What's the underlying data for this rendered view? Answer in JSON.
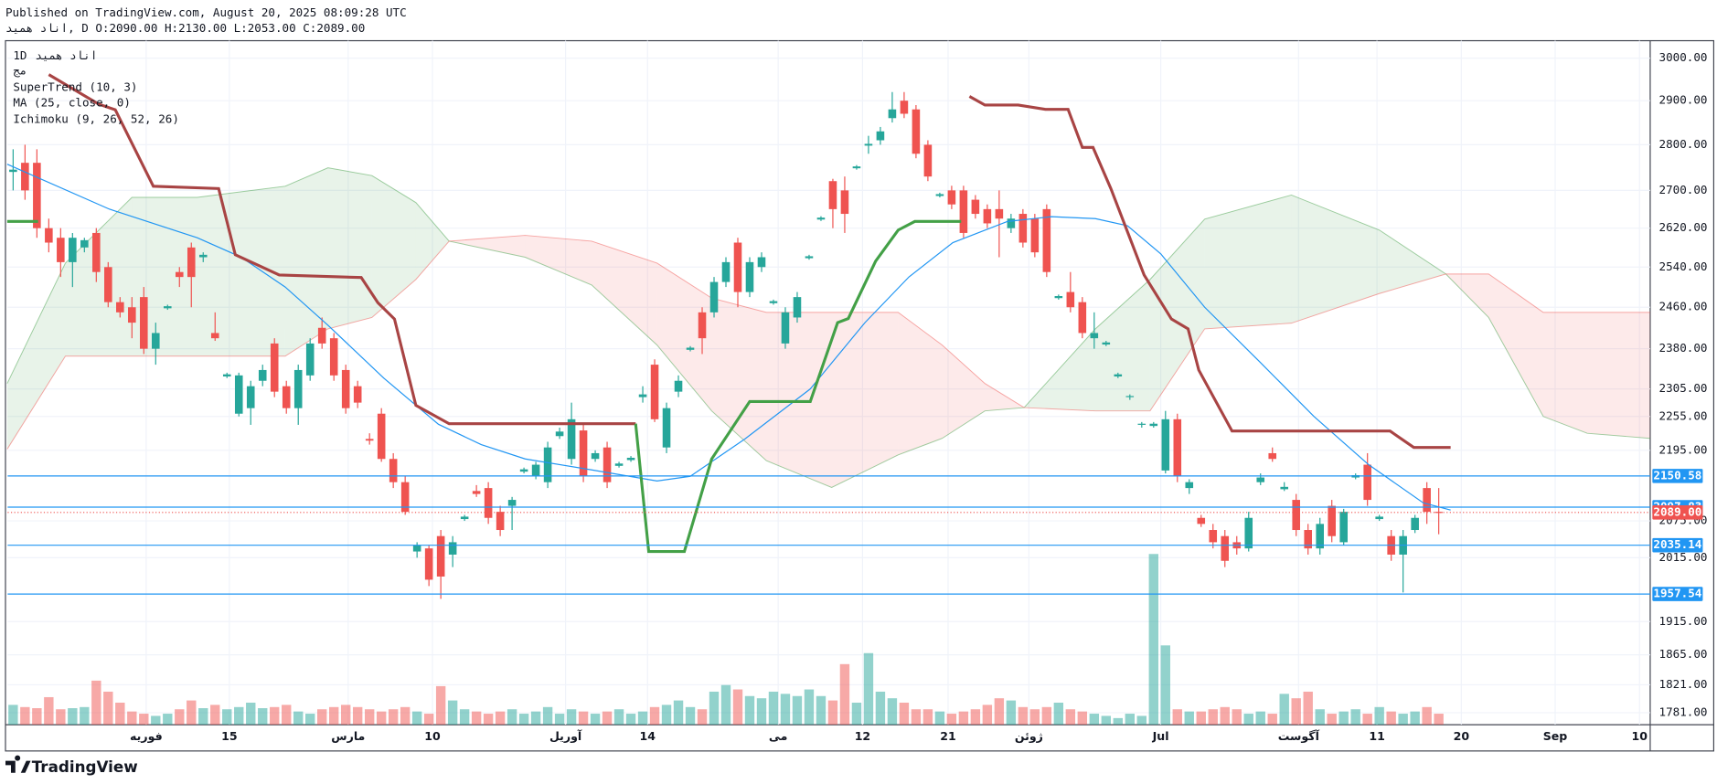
{
  "header": {
    "published": "Published on TradingView.com, August 20, 2025 08:09:28 UTC",
    "ohlc_line": "اناد همید, D O:2090.00 H:2130.00 L:2053.00 C:2089.00"
  },
  "legend": {
    "interval": "1D",
    "symbol": "اناد همید",
    "sub": "مج",
    "indicators": [
      "SuperTrend (10, 3)",
      "MA (25, close, 0)",
      "Ichimoku (9, 26, 52, 26)"
    ]
  },
  "footer": {
    "brand": "TradingView"
  },
  "chart_data": {
    "type": "candlestick",
    "log_scale": true,
    "grid": true,
    "up_color": "#26a69a",
    "down_color": "#ef5350",
    "xlim": [
      -0.46,
      137.8
    ],
    "ylim": [
      1764,
      3042
    ],
    "yticks": [
      {
        "value": 3000,
        "label": "3000.00"
      },
      {
        "value": 2900,
        "label": "2900.00"
      },
      {
        "value": 2800,
        "label": "2800.00"
      },
      {
        "value": 2700,
        "label": "2700.00"
      },
      {
        "value": 2620,
        "label": "2620.00"
      },
      {
        "value": 2540,
        "label": "2540.00"
      },
      {
        "value": 2460,
        "label": "2460.00"
      },
      {
        "value": 2380,
        "label": "2380.00"
      },
      {
        "value": 2305,
        "label": "2305.00"
      },
      {
        "value": 2255,
        "label": "2255.00"
      },
      {
        "value": 2195,
        "label": "2195.00"
      },
      {
        "value": 2075,
        "label": "2075.00"
      },
      {
        "value": 2015,
        "label": "2015.00"
      },
      {
        "value": 1915,
        "label": "1915.00"
      },
      {
        "value": 1865,
        "label": "1865.00"
      },
      {
        "value": 1821,
        "label": "1821.00"
      },
      {
        "value": 1781,
        "label": "1781.00"
      }
    ],
    "xticks": [
      {
        "value": 11.2,
        "label": "فوریه"
      },
      {
        "value": 18.2,
        "label": "15"
      },
      {
        "value": 28.2,
        "label": "مارس"
      },
      {
        "value": 35.3,
        "label": "10"
      },
      {
        "value": 46.5,
        "label": "آوریل"
      },
      {
        "value": 53.4,
        "label": "14"
      },
      {
        "value": 64.4,
        "label": "می"
      },
      {
        "value": 71.5,
        "label": "12"
      },
      {
        "value": 78.7,
        "label": "21"
      },
      {
        "value": 85.5,
        "label": "ژوئن"
      },
      {
        "value": 96.6,
        "label": "Jul"
      },
      {
        "value": 108.2,
        "label": "آگوست"
      },
      {
        "value": 114.8,
        "label": "11"
      },
      {
        "value": 121.9,
        "label": "20"
      },
      {
        "value": 129.8,
        "label": "Sep"
      },
      {
        "value": 136.9,
        "label": "10"
      }
    ],
    "ohlc": [
      [
        2740,
        2790,
        2700,
        2745
      ],
      [
        2760,
        2800,
        2680,
        2700
      ],
      [
        2760,
        2790,
        2600,
        2620
      ],
      [
        2620,
        2640,
        2570,
        2590
      ],
      [
        2600,
        2620,
        2520,
        2550
      ],
      [
        2550,
        2610,
        2500,
        2600
      ],
      [
        2580,
        2600,
        2570,
        2595
      ],
      [
        2610,
        2620,
        2510,
        2530
      ],
      [
        2540,
        2550,
        2460,
        2470
      ],
      [
        2470,
        2480,
        2440,
        2450
      ],
      [
        2460,
        2480,
        2400,
        2430
      ],
      [
        2480,
        2500,
        2370,
        2380
      ],
      [
        2380,
        2430,
        2350,
        2410
      ],
      [
        2458,
        2465,
        2455,
        2462
      ],
      [
        2530,
        2540,
        2500,
        2520
      ],
      [
        2580,
        2590,
        2460,
        2520
      ],
      [
        2560,
        2570,
        2550,
        2565
      ],
      [
        2410,
        2450,
        2395,
        2400
      ],
      [
        2328,
        2335,
        2325,
        2332
      ],
      [
        2260,
        2335,
        2255,
        2330
      ],
      [
        2270,
        2320,
        2240,
        2310
      ],
      [
        2320,
        2350,
        2310,
        2340
      ],
      [
        2390,
        2400,
        2290,
        2300
      ],
      [
        2310,
        2320,
        2260,
        2270
      ],
      [
        2270,
        2350,
        2240,
        2340
      ],
      [
        2330,
        2400,
        2320,
        2390
      ],
      [
        2420,
        2440,
        2380,
        2390
      ],
      [
        2400,
        2410,
        2320,
        2330
      ],
      [
        2340,
        2350,
        2260,
        2270
      ],
      [
        2310,
        2320,
        2270,
        2280
      ],
      [
        2215,
        2225,
        2205,
        2212
      ],
      [
        2260,
        2270,
        2175,
        2180
      ],
      [
        2180,
        2190,
        2130,
        2140
      ],
      [
        2140,
        2150,
        2085,
        2090
      ],
      [
        2025,
        2040,
        2015,
        2035
      ],
      [
        2030,
        2035,
        1970,
        1980
      ],
      [
        2050,
        2060,
        1950,
        1985
      ],
      [
        2020,
        2050,
        2000,
        2040
      ],
      [
        2078,
        2085,
        2075,
        2082
      ],
      [
        2125,
        2135,
        2115,
        2120
      ],
      [
        2130,
        2140,
        2070,
        2080
      ],
      [
        2090,
        2100,
        2050,
        2060
      ],
      [
        2100,
        2115,
        2060,
        2110
      ],
      [
        2158,
        2165,
        2155,
        2162
      ],
      [
        2150,
        2175,
        2145,
        2170
      ],
      [
        2140,
        2210,
        2130,
        2200
      ],
      [
        2220,
        2235,
        2215,
        2228
      ],
      [
        2180,
        2280,
        2170,
        2250
      ],
      [
        2230,
        2240,
        2140,
        2150
      ],
      [
        2180,
        2195,
        2175,
        2190
      ],
      [
        2200,
        2210,
        2130,
        2140
      ],
      [
        2168,
        2175,
        2165,
        2172
      ],
      [
        2178,
        2185,
        2175,
        2182
      ],
      [
        2290,
        2310,
        2280,
        2295
      ],
      [
        2350,
        2360,
        2245,
        2250
      ],
      [
        2200,
        2280,
        2190,
        2270
      ],
      [
        2300,
        2330,
        2290,
        2320
      ],
      [
        2378,
        2385,
        2375,
        2382
      ],
      [
        2450,
        2460,
        2370,
        2400
      ],
      [
        2450,
        2520,
        2440,
        2510
      ],
      [
        2510,
        2560,
        2500,
        2550
      ],
      [
        2590,
        2600,
        2460,
        2490
      ],
      [
        2490,
        2560,
        2480,
        2550
      ],
      [
        2540,
        2570,
        2530,
        2560
      ],
      [
        2468,
        2475,
        2465,
        2472
      ],
      [
        2390,
        2460,
        2380,
        2450
      ],
      [
        2440,
        2490,
        2430,
        2480
      ],
      [
        2558,
        2565,
        2555,
        2562
      ],
      [
        2638,
        2645,
        2635,
        2642
      ],
      [
        2720,
        2725,
        2620,
        2660
      ],
      [
        2700,
        2730,
        2610,
        2650
      ],
      [
        2748,
        2755,
        2745,
        2752
      ],
      [
        2798,
        2820,
        2780,
        2802
      ],
      [
        2810,
        2840,
        2800,
        2830
      ],
      [
        2860,
        2920,
        2850,
        2880
      ],
      [
        2900,
        2920,
        2860,
        2870
      ],
      [
        2880,
        2890,
        2770,
        2780
      ],
      [
        2800,
        2810,
        2720,
        2730
      ],
      [
        2688,
        2695,
        2685,
        2692
      ],
      [
        2700,
        2710,
        2660,
        2670
      ],
      [
        2700,
        2710,
        2600,
        2610
      ],
      [
        2680,
        2690,
        2640,
        2650
      ],
      [
        2660,
        2670,
        2620,
        2630
      ],
      [
        2660,
        2700,
        2560,
        2640
      ],
      [
        2620,
        2650,
        2610,
        2640
      ],
      [
        2650,
        2660,
        2580,
        2590
      ],
      [
        2640,
        2650,
        2560,
        2570
      ],
      [
        2660,
        2670,
        2520,
        2530
      ],
      [
        2478,
        2485,
        2475,
        2482
      ],
      [
        2490,
        2530,
        2450,
        2460
      ],
      [
        2470,
        2480,
        2400,
        2410
      ],
      [
        2400,
        2450,
        2380,
        2410
      ],
      [
        2388,
        2395,
        2385,
        2392
      ],
      [
        2328,
        2335,
        2325,
        2332
      ],
      [
        2290,
        2295,
        2285,
        2292
      ],
      [
        2240,
        2245,
        2235,
        2242
      ],
      [
        2238,
        2245,
        2235,
        2242
      ],
      [
        2160,
        2265,
        2155,
        2250
      ],
      [
        2250,
        2260,
        2140,
        2150
      ],
      [
        2130,
        2145,
        2120,
        2140
      ],
      [
        2080,
        2085,
        2065,
        2070
      ],
      [
        2060,
        2070,
        2030,
        2040
      ],
      [
        2050,
        2060,
        2000,
        2010
      ],
      [
        2040,
        2050,
        2020,
        2030
      ],
      [
        2030,
        2090,
        2025,
        2080
      ],
      [
        2140,
        2155,
        2135,
        2148
      ],
      [
        2190,
        2200,
        2175,
        2180
      ],
      [
        2128,
        2140,
        2125,
        2132
      ],
      [
        2110,
        2120,
        2050,
        2060
      ],
      [
        2060,
        2070,
        2020,
        2030
      ],
      [
        2030,
        2080,
        2020,
        2070
      ],
      [
        2100,
        2110,
        2040,
        2050
      ],
      [
        2040,
        2095,
        2035,
        2090
      ],
      [
        2148,
        2155,
        2145,
        2152
      ],
      [
        2170,
        2190,
        2100,
        2110
      ],
      [
        2078,
        2085,
        2075,
        2082
      ],
      [
        2050,
        2060,
        2010,
        2020
      ],
      [
        2020,
        2060,
        1960,
        2050
      ],
      [
        2060,
        2085,
        2055,
        2080
      ],
      [
        2130,
        2140,
        2070,
        2090
      ],
      [
        2090,
        2130,
        2053,
        2089
      ]
    ],
    "volume": [
      18,
      16,
      15,
      25,
      14,
      15,
      16,
      40,
      30,
      20,
      12,
      10,
      8,
      10,
      14,
      22,
      15,
      18,
      14,
      16,
      20,
      15,
      16,
      18,
      12,
      10,
      14,
      16,
      18,
      16,
      14,
      12,
      14,
      16,
      12,
      10,
      35,
      22,
      14,
      12,
      10,
      12,
      14,
      10,
      12,
      16,
      10,
      14,
      12,
      10,
      12,
      14,
      10,
      12,
      16,
      18,
      22,
      16,
      14,
      30,
      36,
      32,
      26,
      24,
      30,
      28,
      26,
      32,
      26,
      22,
      55,
      20,
      65,
      30,
      24,
      20,
      14,
      14,
      12,
      10,
      12,
      14,
      18,
      24,
      22,
      16,
      14,
      16,
      20,
      14,
      12,
      10,
      8,
      6,
      10,
      8,
      155,
      72,
      14,
      12,
      12,
      14,
      16,
      14,
      10,
      12,
      10,
      28,
      24,
      30,
      14,
      10,
      12,
      14,
      10,
      16,
      12,
      10,
      12,
      16,
      10
    ],
    "supertrend": [
      {
        "color": "#43a047",
        "x": [
          -0.5,
          2.1
        ],
        "values": [
          2634,
          2634
        ]
      },
      {
        "color": "#a84444",
        "x": [
          3.0,
          7.2,
          8.6,
          11.8,
          17.3,
          18.7,
          22.4,
          29.3,
          30.7,
          32.1,
          33.9,
          36.7,
          52.4
        ],
        "values": [
          2961,
          2892,
          2879,
          2709,
          2704,
          2565,
          2524,
          2519,
          2469,
          2437,
          2275,
          2242,
          2242
        ]
      },
      {
        "color": "#43a047",
        "x": [
          52.4,
          53.5,
          56.5,
          58.8,
          62.0,
          67.1,
          69.4,
          70.3,
          72.6,
          74.5,
          75.9,
          79.8
        ],
        "values": [
          2242,
          2025,
          2025,
          2180,
          2282,
          2282,
          2430,
          2438,
          2552,
          2616,
          2634,
          2634
        ]
      },
      {
        "color": "#a84444",
        "x": [
          80.5,
          81.8,
          84.6,
          86.9,
          88.8,
          90.0,
          90.9,
          92.4,
          95.2,
          97.5,
          98.9,
          99.8,
          102.6,
          115.9,
          117.9,
          121.0
        ],
        "values": [
          2910,
          2890,
          2890,
          2880,
          2880,
          2794,
          2794,
          2704,
          2524,
          2437,
          2418,
          2340,
          2229,
          2229,
          2200,
          2200
        ]
      }
    ],
    "ma": {
      "color": "#2196f3",
      "x": [
        -0.5,
        8.1,
        15.5,
        19.2,
        22.9,
        26.5,
        31.2,
        35.8,
        39.4,
        43.1,
        48.7,
        54.2,
        57.0,
        61.6,
        67.1,
        71.7,
        75.4,
        79.1,
        83.7,
        87.4,
        91.1,
        93.8,
        96.6,
        100.3,
        104.9,
        109.5,
        114.1,
        118.7,
        121.0
      ],
      "values": [
        2757,
        2660,
        2600,
        2560,
        2500,
        2425,
        2325,
        2241,
        2205,
        2180,
        2161,
        2142,
        2150,
        2215,
        2305,
        2430,
        2520,
        2590,
        2634,
        2644,
        2640,
        2625,
        2567,
        2460,
        2356,
        2255,
        2170,
        2105,
        2093
      ]
    },
    "cloud": {
      "up_color": "#43a047",
      "down_color": "#ef5350",
      "x": [
        -0.5,
        4.4,
        10.0,
        15.5,
        22.9,
        26.5,
        30.2,
        33.9,
        36.7,
        43.1,
        48.7,
        54.2,
        58.8,
        63.4,
        68.9,
        74.5,
        78.2,
        81.8,
        85.1,
        91.1,
        95.7,
        100.3,
        107.6,
        115.0,
        120.6,
        124.2,
        128.8,
        132.5,
        137.8
      ],
      "span_a": [
        2315,
        2548,
        2685,
        2685,
        2709,
        2749,
        2732,
        2674,
        2593,
        2560,
        2504,
        2387,
        2265,
        2177,
        2131,
        2187,
        2216,
        2265,
        2271,
        2418,
        2515,
        2639,
        2690,
        2616,
        2526,
        2440,
        2255,
        2225,
        2216
      ],
      "span_b": [
        2197,
        2366,
        2366,
        2366,
        2366,
        2418,
        2440,
        2515,
        2593,
        2605,
        2593,
        2548,
        2478,
        2450,
        2450,
        2450,
        2387,
        2315,
        2271,
        2265,
        2265,
        2418,
        2429,
        2487,
        2526,
        2526,
        2450,
        2450,
        2450
      ]
    },
    "levels": {
      "color": "#2196f3",
      "values": [
        2150.58,
        2097.83,
        2035.14,
        1957.54
      ]
    },
    "last_price": {
      "value": 2089,
      "label": "2089.00",
      "color": "#ef5350"
    }
  }
}
